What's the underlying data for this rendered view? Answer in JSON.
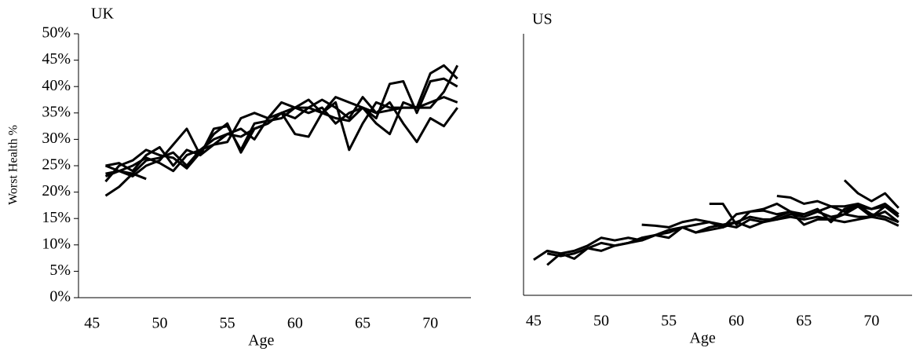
{
  "chart_data": [
    {
      "type": "line",
      "title": "UK",
      "x_label": "Age",
      "y_label": "Worst Health %",
      "x": [
        45,
        46,
        47,
        48,
        49,
        50,
        51,
        52,
        53,
        54,
        55,
        56,
        57,
        58,
        59,
        60,
        61,
        62,
        63,
        64,
        65,
        66,
        67,
        68,
        69,
        70,
        71,
        72
      ],
      "xlim": [
        44,
        73
      ],
      "xticks": [
        45,
        50,
        55,
        60,
        65,
        70
      ],
      "ylim": [
        0,
        50
      ],
      "yticks": [
        {
          "value": 0,
          "label": "0%"
        },
        {
          "value": 5,
          "label": "5%"
        },
        {
          "value": 10,
          "label": "10%"
        },
        {
          "value": 15,
          "label": "15%"
        },
        {
          "value": 20,
          "label": "20%"
        },
        {
          "value": 25,
          "label": "25%"
        },
        {
          "value": 30,
          "label": "30%"
        },
        {
          "value": 35,
          "label": "35%"
        },
        {
          "value": 40,
          "label": "40%"
        },
        {
          "value": 45,
          "label": "45%"
        },
        {
          "value": 50,
          "label": "50%"
        }
      ],
      "color": "#000000",
      "series": [
        {
          "values": [
            null,
            19.3,
            21,
            23.5,
            26,
            26.5,
            27.5,
            25,
            28,
            30,
            31,
            30.5,
            32,
            33,
            35,
            34,
            36,
            35,
            34,
            33.5,
            36,
            35,
            35.5,
            36,
            36,
            37,
            38,
            37
          ]
        },
        {
          "values": [
            null,
            25,
            25.5,
            24,
            27,
            28.5,
            25,
            28,
            27,
            32,
            32.5,
            28,
            33,
            33.5,
            34,
            36,
            35,
            36,
            33,
            35,
            36,
            34,
            40.5,
            41,
            35,
            41,
            41.5,
            40
          ]
        },
        {
          "values": [
            null,
            23,
            24,
            25,
            26.5,
            25.5,
            24,
            27,
            28,
            29,
            31,
            32,
            30,
            34,
            35,
            31,
            30.5,
            35,
            38,
            37,
            36,
            33,
            31,
            37,
            36,
            42.5,
            44,
            41.5
          ]
        },
        {
          "values": [
            null,
            25,
            24,
            23,
            25,
            26,
            29,
            32,
            27,
            29,
            29.5,
            34,
            35,
            34,
            37,
            36,
            36,
            37.5,
            36,
            34,
            38,
            35,
            37,
            33,
            29.5,
            34,
            32.5,
            36
          ]
        },
        {
          "values": [
            null,
            22,
            25,
            26,
            28,
            27,
            26.5,
            24.5,
            27.5,
            31,
            33,
            27.5,
            32,
            33,
            35,
            36,
            37.5,
            35,
            37,
            28,
            33,
            37,
            36,
            36,
            36,
            36,
            39,
            44
          ]
        },
        {
          "values": [
            null,
            23.5,
            24,
            23.5,
            22.5,
            null,
            null,
            null,
            null,
            null,
            null,
            null,
            null,
            null,
            null,
            null,
            null,
            null,
            null,
            null,
            null,
            null,
            null,
            null,
            null,
            null,
            null,
            null
          ]
        }
      ]
    },
    {
      "type": "line",
      "title": "US",
      "x_label": "Age",
      "x": [
        45,
        46,
        47,
        48,
        49,
        50,
        51,
        52,
        53,
        54,
        55,
        56,
        57,
        58,
        59,
        60,
        61,
        62,
        63,
        64,
        65,
        66,
        67,
        68,
        69,
        70,
        71,
        72
      ],
      "xlim": [
        44.25,
        73
      ],
      "xticks": [
        45,
        50,
        55,
        60,
        65,
        70
      ],
      "ylim": [
        0,
        50
      ],
      "color": "#000000",
      "series": [
        {
          "values": [
            6.8,
            8.5,
            8,
            8.5,
            9.5,
            11,
            10.5,
            11,
            10.5,
            11.5,
            11,
            13,
            12,
            13,
            13.5,
            14,
            15,
            14.5,
            14.5,
            15,
            14.5,
            15,
            14.5,
            14,
            14.5,
            15,
            14.5,
            13.3
          ]
        },
        {
          "values": [
            null,
            5.8,
            8,
            7,
            9,
            8.5,
            9.5,
            10,
            11,
            11.5,
            12,
            13,
            13.5,
            14,
            13.5,
            13,
            14.5,
            14,
            14.5,
            15.5,
            15,
            16,
            15,
            15.5,
            15,
            15,
            16,
            14
          ]
        },
        {
          "values": [
            null,
            8,
            7.5,
            8,
            9,
            10,
            9.5,
            10,
            10.5,
            11.5,
            12.5,
            13,
            12,
            12.5,
            13,
            14,
            13,
            14,
            15,
            16,
            13.5,
            14.5,
            14.5,
            15.5,
            17,
            15,
            17,
            15
          ]
        },
        {
          "values": [
            null,
            null,
            null,
            null,
            null,
            null,
            null,
            null,
            13.5,
            13.3,
            13,
            14,
            14.5,
            14,
            13,
            15.5,
            16,
            16.2,
            15.5,
            16,
            15,
            16,
            17,
            16,
            17,
            16.5,
            17,
            15
          ]
        },
        {
          "values": [
            null,
            null,
            null,
            null,
            null,
            null,
            null,
            null,
            null,
            null,
            null,
            null,
            null,
            17.5,
            17.5,
            13.5,
            16,
            16.5,
            17.5,
            16,
            15.5,
            16.5,
            14,
            16.5,
            17.2,
            15.5,
            15,
            14
          ]
        },
        {
          "values": [
            null,
            null,
            null,
            null,
            null,
            null,
            null,
            null,
            null,
            null,
            null,
            null,
            null,
            null,
            null,
            null,
            null,
            null,
            19,
            18.7,
            17.5,
            18,
            17,
            17,
            17.5,
            16.5,
            17.5,
            15.5
          ]
        },
        {
          "values": [
            null,
            null,
            null,
            null,
            null,
            null,
            null,
            null,
            null,
            null,
            null,
            null,
            null,
            null,
            null,
            null,
            null,
            null,
            null,
            null,
            null,
            null,
            null,
            22,
            19.5,
            18,
            19.5,
            16.7
          ]
        }
      ]
    }
  ]
}
